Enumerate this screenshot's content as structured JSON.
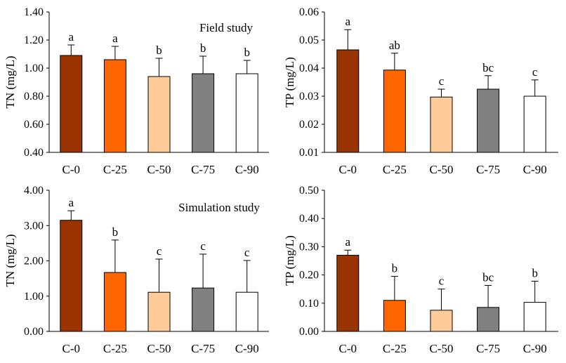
{
  "chart_data": [
    {
      "type": "bar",
      "title": "",
      "annotation": "Field study",
      "ylabel": "TN (mg/L)",
      "xlabel": "",
      "categories": [
        "C-0",
        "C-25",
        "C-50",
        "C-75",
        "C-90"
      ],
      "values": [
        1.09,
        1.06,
        0.94,
        0.96,
        0.96
      ],
      "errors": [
        0.075,
        0.095,
        0.13,
        0.125,
        0.095
      ],
      "significance": [
        "a",
        "a",
        "b",
        "b",
        "b"
      ],
      "ylim": [
        0.4,
        1.4
      ],
      "yticks": [
        "0.40",
        "0.60",
        "0.80",
        "1.00",
        "1.20",
        "1.40"
      ],
      "colors": [
        "#993300",
        "#ff6600",
        "#ffcc99",
        "#808080",
        "#ffffff"
      ]
    },
    {
      "type": "bar",
      "title": "",
      "annotation": "",
      "ylabel": "TP (mg/L)",
      "xlabel": "",
      "categories": [
        "C-0",
        "C-25",
        "C-50",
        "C-75",
        "C-90"
      ],
      "values": [
        0.0465,
        0.0393,
        0.0297,
        0.0325,
        0.03
      ],
      "errors": [
        0.0072,
        0.006,
        0.0028,
        0.0048,
        0.0058
      ],
      "significance": [
        "a",
        "ab",
        "c",
        "bc",
        "c"
      ],
      "ylim": [
        0.01,
        0.06
      ],
      "yticks": [
        "0.01",
        "0.02",
        "0.03",
        "0.04",
        "0.05",
        "0.06"
      ],
      "colors": [
        "#993300",
        "#ff6600",
        "#ffcc99",
        "#808080",
        "#ffffff"
      ]
    },
    {
      "type": "bar",
      "title": "",
      "annotation": "Simulation study",
      "ylabel": "TN (mg/L)",
      "xlabel": "",
      "categories": [
        "C-0",
        "C-25",
        "C-50",
        "C-75",
        "C-90"
      ],
      "values": [
        3.15,
        1.67,
        1.11,
        1.23,
        1.11
      ],
      "errors": [
        0.27,
        0.92,
        0.94,
        0.96,
        0.9
      ],
      "significance": [
        "a",
        "b",
        "c",
        "c",
        "c"
      ],
      "ylim": [
        0,
        4
      ],
      "yticks": [
        "0.00",
        "1.00",
        "2.00",
        "3.00",
        "4.00"
      ],
      "colors": [
        "#993300",
        "#ff6600",
        "#ffcc99",
        "#808080",
        "#ffffff"
      ]
    },
    {
      "type": "bar",
      "title": "",
      "annotation": "",
      "ylabel": "TP (mg/L)",
      "xlabel": "",
      "categories": [
        "C-0",
        "C-25",
        "C-50",
        "C-75",
        "C-90"
      ],
      "values": [
        0.27,
        0.11,
        0.075,
        0.085,
        0.103
      ],
      "errors": [
        0.018,
        0.085,
        0.075,
        0.078,
        0.075
      ],
      "significance": [
        "a",
        "b",
        "c",
        "bc",
        "b"
      ],
      "ylim": [
        0,
        0.5
      ],
      "yticks": [
        "0.00",
        "0.10",
        "0.20",
        "0.30",
        "0.40",
        "0.50"
      ],
      "colors": [
        "#993300",
        "#ff6600",
        "#ffcc99",
        "#808080",
        "#ffffff"
      ]
    }
  ]
}
